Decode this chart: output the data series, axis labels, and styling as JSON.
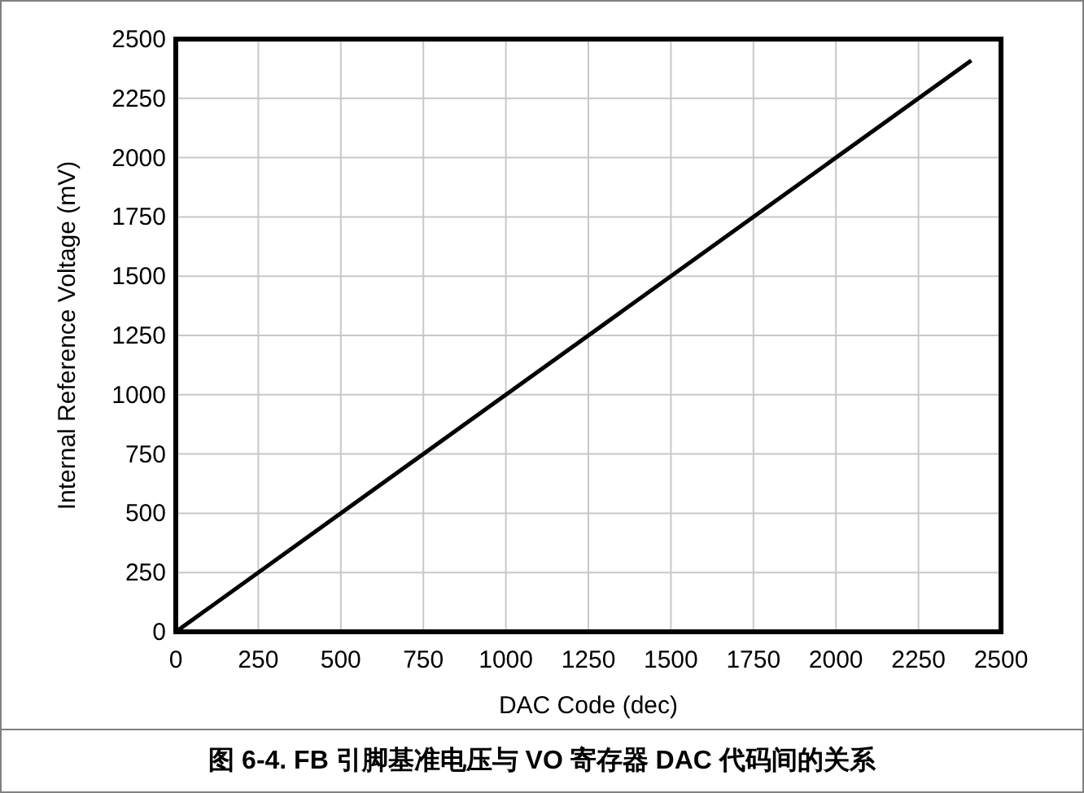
{
  "chart_data": {
    "type": "line",
    "title": "图 6-4. FB 引脚基准电压与 VO 寄存器 DAC 代码间的关系",
    "xlabel": "DAC Code (dec)",
    "ylabel": "Internal Reference Voltage (mV)",
    "x": [
      0,
      2410
    ],
    "series": [
      {
        "color": "#000000",
        "values": [
          0,
          2410
        ]
      }
    ],
    "xlim": [
      0,
      2500
    ],
    "ylim": [
      0,
      2500
    ],
    "xticks": [
      0,
      250,
      500,
      750,
      1000,
      1250,
      1500,
      1750,
      2000,
      2250,
      2500
    ],
    "yticks": [
      0,
      250,
      500,
      750,
      1000,
      1250,
      1500,
      1750,
      2000,
      2250,
      2500
    ],
    "grid": true,
    "marker": "none",
    "line_style": "solid"
  }
}
